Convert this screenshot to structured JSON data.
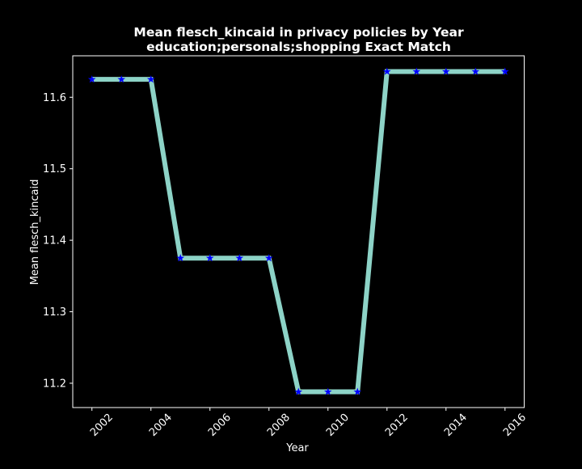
{
  "chart_data": {
    "type": "line",
    "title": "Mean flesch_kincaid in privacy policies by Year",
    "subtitle": "education;personals;shopping Exact Match",
    "xlabel": "Year",
    "ylabel": "Mean flesch_kincaid",
    "xlim": [
      2001.35,
      2016.65
    ],
    "ylim": [
      11.166,
      11.658
    ],
    "xticks": [
      2002,
      2004,
      2006,
      2008,
      2010,
      2012,
      2014,
      2016
    ],
    "yticks": [
      11.2,
      11.3,
      11.4,
      11.5,
      11.6
    ],
    "x": [
      2002,
      2003,
      2004,
      2005,
      2006,
      2007,
      2008,
      2009,
      2010,
      2011,
      2012,
      2013,
      2014,
      2015,
      2016
    ],
    "series": [
      {
        "values": [
          11.625,
          11.625,
          11.625,
          11.375,
          11.375,
          11.375,
          11.375,
          11.188,
          11.188,
          11.188,
          11.636,
          11.636,
          11.636,
          11.636,
          11.636
        ],
        "line_color": "#8dd3c7",
        "marker_color": "#0000ff",
        "marker": "star"
      }
    ],
    "grid": false,
    "background": "#000000",
    "foreground": "#ffffff"
  }
}
